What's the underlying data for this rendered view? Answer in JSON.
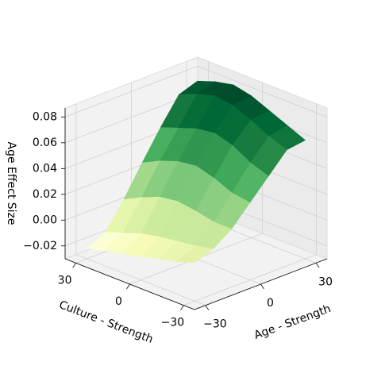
{
  "chart_data": {
    "type": "surface",
    "x_label": "Age - Strength",
    "y_label": "Culture - Strength",
    "z_label": "Age Effect Size",
    "x": [
      -30,
      -20,
      -10,
      0,
      10,
      20,
      30
    ],
    "y": [
      -30,
      -20,
      -10,
      0,
      10,
      20,
      30
    ],
    "z": [
      [
        0.0,
        0.005,
        0.015,
        0.03,
        0.045,
        0.06,
        0.062
      ],
      [
        -0.005,
        0.002,
        0.015,
        0.032,
        0.05,
        0.065,
        0.068
      ],
      [
        -0.008,
        0.0,
        0.018,
        0.038,
        0.058,
        0.072,
        0.074
      ],
      [
        -0.012,
        -0.002,
        0.02,
        0.042,
        0.062,
        0.078,
        0.08
      ],
      [
        -0.015,
        -0.005,
        0.018,
        0.04,
        0.06,
        0.08,
        0.083
      ],
      [
        -0.018,
        -0.01,
        0.012,
        0.035,
        0.055,
        0.076,
        0.08
      ],
      [
        -0.022,
        -0.015,
        0.005,
        0.028,
        0.05,
        0.07,
        0.075
      ]
    ],
    "xlim": [
      -36,
      36
    ],
    "ylim": [
      -36,
      36
    ],
    "zlim": [
      -0.03,
      0.087
    ],
    "xticks": [
      {
        "value": -30,
        "label": "−30"
      },
      0,
      30
    ],
    "yticks": [
      {
        "value": -30,
        "label": "−30"
      },
      0,
      30
    ],
    "zticks": [
      {
        "value": -0.02,
        "label": "−0.02"
      },
      {
        "value": 0,
        "label": "0.00"
      },
      0.02,
      0.04,
      0.06,
      0.08
    ],
    "colormap": [
      "#ffffe5",
      "#f7fcb9",
      "#d9f0a3",
      "#addd8e",
      "#78c679",
      "#41ab5d",
      "#238443",
      "#006837",
      "#004529"
    ],
    "grid": true
  }
}
